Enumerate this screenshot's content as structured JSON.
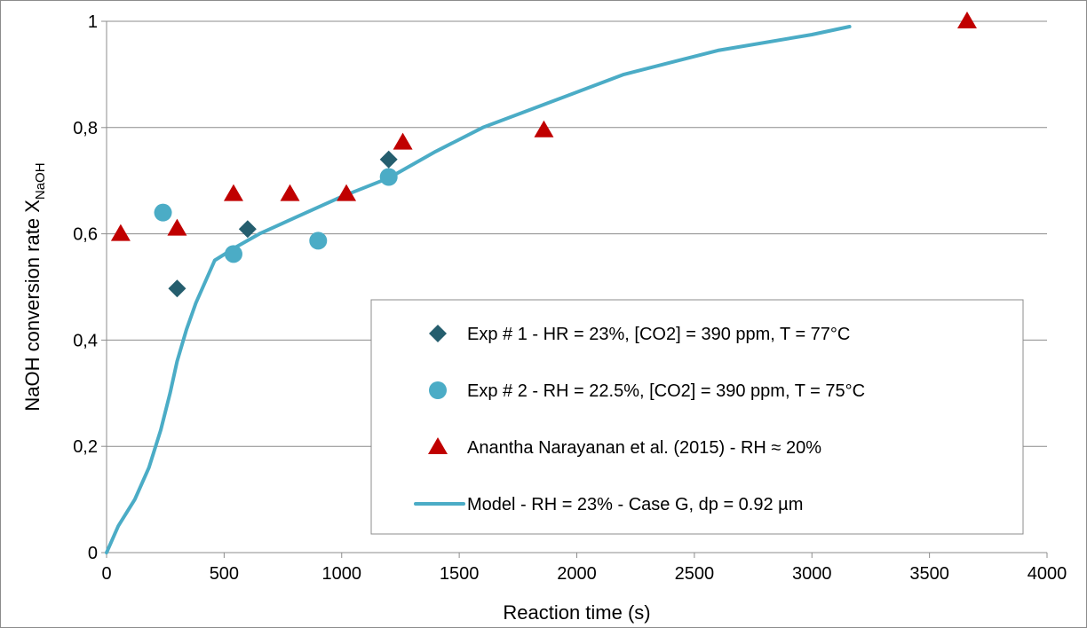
{
  "chart_data": {
    "type": "scatter",
    "xlabel": "Reaction time (s)",
    "ylabel_main": "NaOH conversion rate X",
    "ylabel_sub": "NaOH",
    "xlim": [
      0,
      4000
    ],
    "ylim": [
      0,
      1
    ],
    "x_ticks": [
      "0",
      "500",
      "1000",
      "1500",
      "2000",
      "2500",
      "3000",
      "3500",
      "4000"
    ],
    "y_ticks": [
      "0",
      "0,2",
      "0,4",
      "0,6",
      "0,8",
      "1"
    ],
    "grid": "horizontal",
    "legend_position": "bottom-right",
    "series": [
      {
        "name": "Exp # 1 - HR = 23%, [CO2] = 390 ppm, T = 77°C",
        "kind": "scatter",
        "marker": "diamond",
        "color": "#255e6e",
        "points": [
          [
            300,
            0.497
          ],
          [
            600,
            0.609
          ],
          [
            1200,
            0.74
          ]
        ]
      },
      {
        "name": "Exp # 2 -  RH = 22.5%, [CO2] = 390 ppm, T = 75°C",
        "kind": "scatter",
        "marker": "circle",
        "color": "#4bacc6",
        "points": [
          [
            240,
            0.64
          ],
          [
            540,
            0.562
          ],
          [
            900,
            0.587
          ],
          [
            1200,
            0.707
          ]
        ]
      },
      {
        "name": "Anantha Narayanan et al. (2015) - RH ≈ 20%",
        "kind": "scatter",
        "marker": "triangle",
        "color": "#c00000",
        "points": [
          [
            60,
            0.6
          ],
          [
            300,
            0.61
          ],
          [
            540,
            0.675
          ],
          [
            780,
            0.675
          ],
          [
            1020,
            0.675
          ],
          [
            1260,
            0.772
          ],
          [
            1860,
            0.795
          ],
          [
            3660,
            1.0
          ]
        ]
      },
      {
        "name": "Model - RH = 23% - Case G, dp = 0.92 µm",
        "kind": "line",
        "color": "#4bacc6",
        "points": [
          [
            0,
            0.0
          ],
          [
            50,
            0.05
          ],
          [
            120,
            0.1
          ],
          [
            180,
            0.16
          ],
          [
            230,
            0.23
          ],
          [
            270,
            0.3
          ],
          [
            300,
            0.36
          ],
          [
            340,
            0.42
          ],
          [
            380,
            0.47
          ],
          [
            420,
            0.51
          ],
          [
            460,
            0.55
          ],
          [
            550,
            0.575
          ],
          [
            650,
            0.6
          ],
          [
            800,
            0.63
          ],
          [
            1000,
            0.67
          ],
          [
            1200,
            0.705
          ],
          [
            1400,
            0.755
          ],
          [
            1600,
            0.8
          ],
          [
            1900,
            0.85
          ],
          [
            2200,
            0.9
          ],
          [
            2600,
            0.945
          ],
          [
            3000,
            0.975
          ],
          [
            3160,
            0.99
          ]
        ]
      }
    ]
  }
}
